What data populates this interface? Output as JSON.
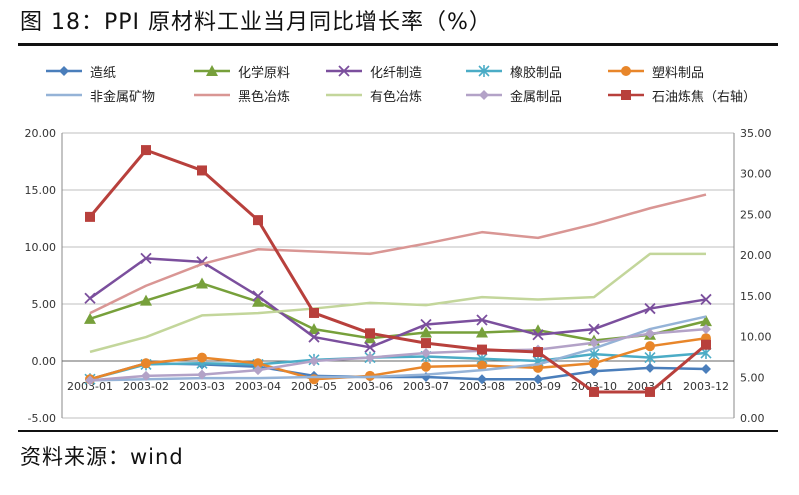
{
  "header": {
    "title": "图 18：PPI 原材料工业当月同比增长率（%）"
  },
  "footer": {
    "source": "资料来源：wind"
  },
  "chart_data": {
    "type": "line",
    "title": "图 18：PPI 原材料工业当月同比增长率（%）",
    "categories": [
      "2003-01",
      "2003-02",
      "2003-03",
      "2003-04",
      "2003-05",
      "2003-06",
      "2003-07",
      "2003-08",
      "2003-09",
      "2003-10",
      "2003-11",
      "2003-12"
    ],
    "y_left": {
      "ylim": [
        -5,
        20
      ],
      "ticks": [
        "-5.00",
        "0.00",
        "5.00",
        "10.00",
        "15.00",
        "20.00"
      ]
    },
    "y_right": {
      "ylim": [
        0,
        35
      ],
      "ticks": [
        "0.00",
        "5.00",
        "10.00",
        "15.00",
        "20.00",
        "25.00",
        "30.00",
        "35.00"
      ]
    },
    "grid": "horizontal",
    "legend_position": "top",
    "series": [
      {
        "name": "造纸",
        "color": "#4a7ebb",
        "marker": "diamond",
        "axis": "left",
        "values": [
          -1.6,
          -0.2,
          -0.3,
          -0.5,
          -1.3,
          -1.4,
          -1.4,
          -1.6,
          -1.6,
          -0.9,
          -0.6,
          -0.7
        ]
      },
      {
        "name": "化学原料",
        "color": "#77a03b",
        "marker": "triangle",
        "axis": "left",
        "values": [
          3.7,
          5.3,
          6.8,
          5.2,
          2.8,
          2.0,
          2.5,
          2.5,
          2.7,
          1.8,
          2.3,
          3.5
        ]
      },
      {
        "name": "化纤制造",
        "color": "#7b4f9d",
        "marker": "x",
        "axis": "left",
        "values": [
          5.5,
          9.0,
          8.7,
          5.7,
          2.1,
          1.2,
          3.2,
          3.6,
          2.3,
          2.8,
          4.6,
          5.4
        ]
      },
      {
        "name": "橡胶制品",
        "color": "#4bacc6",
        "marker": "star",
        "axis": "left",
        "values": [
          -1.6,
          -0.3,
          -0.2,
          -0.3,
          0.1,
          0.3,
          0.4,
          0.2,
          0.0,
          0.6,
          0.3,
          0.7
        ]
      },
      {
        "name": "塑料制品",
        "color": "#e8862a",
        "marker": "circle",
        "axis": "left",
        "values": [
          -1.6,
          -0.2,
          0.3,
          -0.2,
          -1.6,
          -1.3,
          -0.5,
          -0.4,
          -0.6,
          -0.2,
          1.3,
          2.0
        ]
      },
      {
        "name": "非金属矿物",
        "color": "#95b3d7",
        "marker": "none",
        "axis": "left",
        "values": [
          -1.7,
          -1.6,
          -1.5,
          -1.5,
          -1.4,
          -1.4,
          -1.2,
          -0.8,
          -0.3,
          1.1,
          2.8,
          3.9
        ]
      },
      {
        "name": "黑色冶炼",
        "color": "#d99694",
        "marker": "none",
        "axis": "left",
        "values": [
          4.2,
          6.6,
          8.5,
          9.8,
          9.6,
          9.4,
          10.3,
          11.3,
          10.8,
          12.0,
          13.4,
          14.6
        ]
      },
      {
        "name": "有色冶炼",
        "color": "#c3d69b",
        "marker": "none",
        "axis": "left",
        "values": [
          0.8,
          2.1,
          4.0,
          4.2,
          4.6,
          5.1,
          4.9,
          5.6,
          5.4,
          5.6,
          9.4,
          9.4
        ]
      },
      {
        "name": "金属制品",
        "color": "#b3a2c7",
        "marker": "diamond",
        "axis": "left",
        "values": [
          -1.7,
          -1.3,
          -1.2,
          -0.8,
          0.0,
          0.3,
          0.7,
          0.9,
          1.0,
          1.6,
          2.4,
          2.8
        ]
      },
      {
        "name": "石油炼焦（右轴）",
        "color": "#b8403c",
        "marker": "square",
        "axis": "right",
        "values": [
          24.7,
          32.9,
          30.4,
          24.3,
          12.9,
          10.4,
          9.2,
          8.4,
          8.1,
          3.2,
          3.2,
          9.0
        ]
      }
    ]
  }
}
